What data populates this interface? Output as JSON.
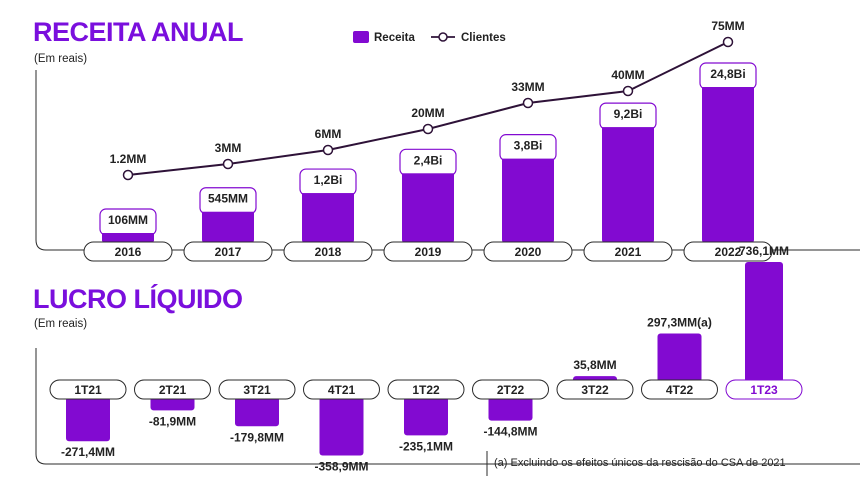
{
  "colors": {
    "accent": "#820ad1",
    "bar": "#820ad1",
    "line": "#2e1238",
    "text": "#222222"
  },
  "chart_data": [
    {
      "type": "bar",
      "title": "RECEITA ANUAL",
      "subtitle": "(Em reais)",
      "legend": {
        "position": "top-center",
        "bar_label": "Receita",
        "line_label": "Clientes"
      },
      "categories": [
        "2016",
        "2017",
        "2018",
        "2019",
        "2020",
        "2021",
        "2022"
      ],
      "series": [
        {
          "name": "Receita",
          "kind": "bar",
          "values": [
            0.106,
            0.545,
            1.2,
            2.4,
            3.8,
            9.2,
            24.8
          ],
          "labels": [
            "106MM",
            "545MM",
            "1,2Bi",
            "2,4Bi",
            "3,8Bi",
            "9,2Bi",
            "24,8Bi"
          ]
        },
        {
          "name": "Clientes",
          "kind": "line",
          "values": [
            1.2,
            3,
            6,
            20,
            33,
            40,
            75
          ],
          "labels": [
            "1.2MM",
            "3MM",
            "6MM",
            "20MM",
            "33MM",
            "40MM",
            "75MM"
          ]
        }
      ]
    },
    {
      "type": "bar",
      "title": "LUCRO LÍQUIDO",
      "subtitle": "(Em reais)",
      "categories": [
        "1T21",
        "2T21",
        "3T21",
        "4T21",
        "1T22",
        "2T22",
        "3T22",
        "4T22",
        "1T23"
      ],
      "series": [
        {
          "name": "Lucro Líquido",
          "values": [
            -271.4,
            -81.9,
            -179.8,
            -358.9,
            -235.1,
            -144.8,
            35.8,
            297.3,
            736.1
          ],
          "labels": [
            "-271,4MM",
            "-81,9MM",
            "-179,8MM",
            "-358,9MM",
            "-235,1MM",
            "-144,8MM",
            "35,8MM",
            "297,3MM(a)",
            "736,1MM"
          ]
        }
      ],
      "footnote": "(a) Excluindo os efeitos únicos da rescisão do CSA de 2021"
    }
  ]
}
